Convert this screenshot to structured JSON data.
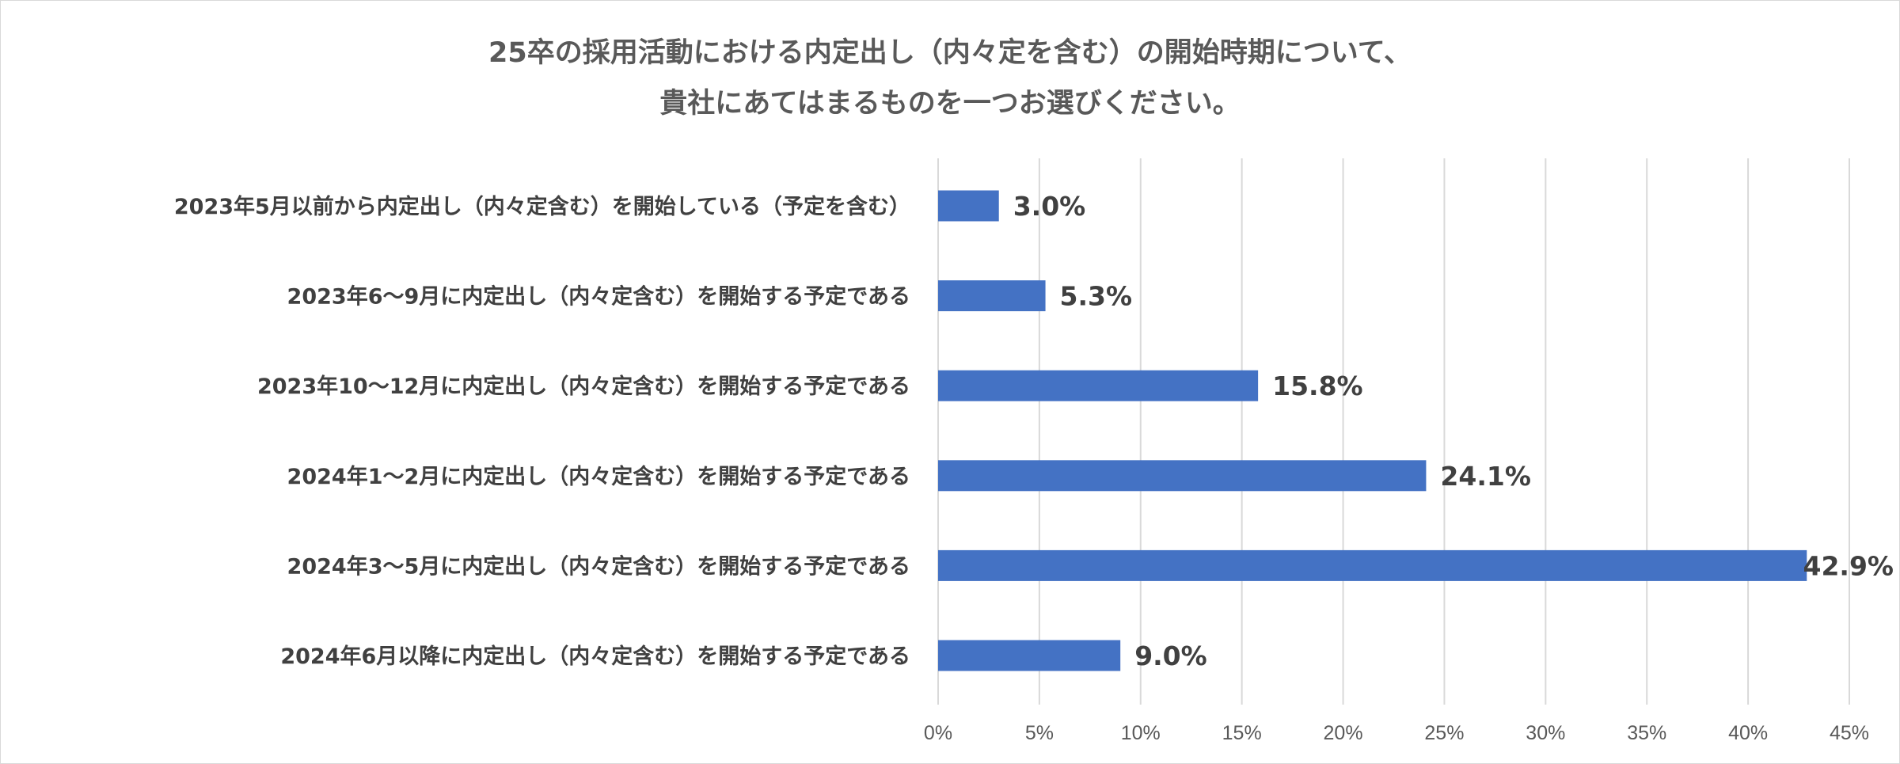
{
  "chart_data": {
    "type": "bar",
    "orientation": "horizontal",
    "title_lines": [
      "25卒の採用活動における内定出し（内々定を含む）の開始時期について、",
      "貴社にあてはまるものを一つお選びください。"
    ],
    "categories": [
      "2023年5月以前から内定出し（内々定含む）を開始している（予定を含む）",
      "2023年6～9月に内定出し（内々定含む）を開始する予定である",
      "2023年10～12月に内定出し（内々定含む）を開始する予定である",
      "2024年1～2月に内定出し（内々定含む）を開始する予定である",
      "2024年3～5月に内定出し（内々定含む）を開始する予定である",
      "2024年6月以降に内定出し（内々定含む）を開始する予定である"
    ],
    "values": [
      3.0,
      5.3,
      15.8,
      24.1,
      42.9,
      9.0
    ],
    "value_labels": [
      "3.0%",
      "5.3%",
      "15.8%",
      "24.1%",
      "42.9%",
      "9.0%"
    ],
    "xlim": [
      0,
      45
    ],
    "x_ticks": [
      0,
      5,
      10,
      15,
      20,
      25,
      30,
      35,
      40,
      45
    ],
    "x_tick_labels": [
      "0%",
      "5%",
      "10%",
      "15%",
      "20%",
      "25%",
      "30%",
      "35%",
      "40%",
      "45%"
    ],
    "grid": "vertical",
    "legend": "none",
    "bar_color": "#4472c4",
    "grid_color": "#d9d9d9",
    "text_color": "#404040"
  }
}
